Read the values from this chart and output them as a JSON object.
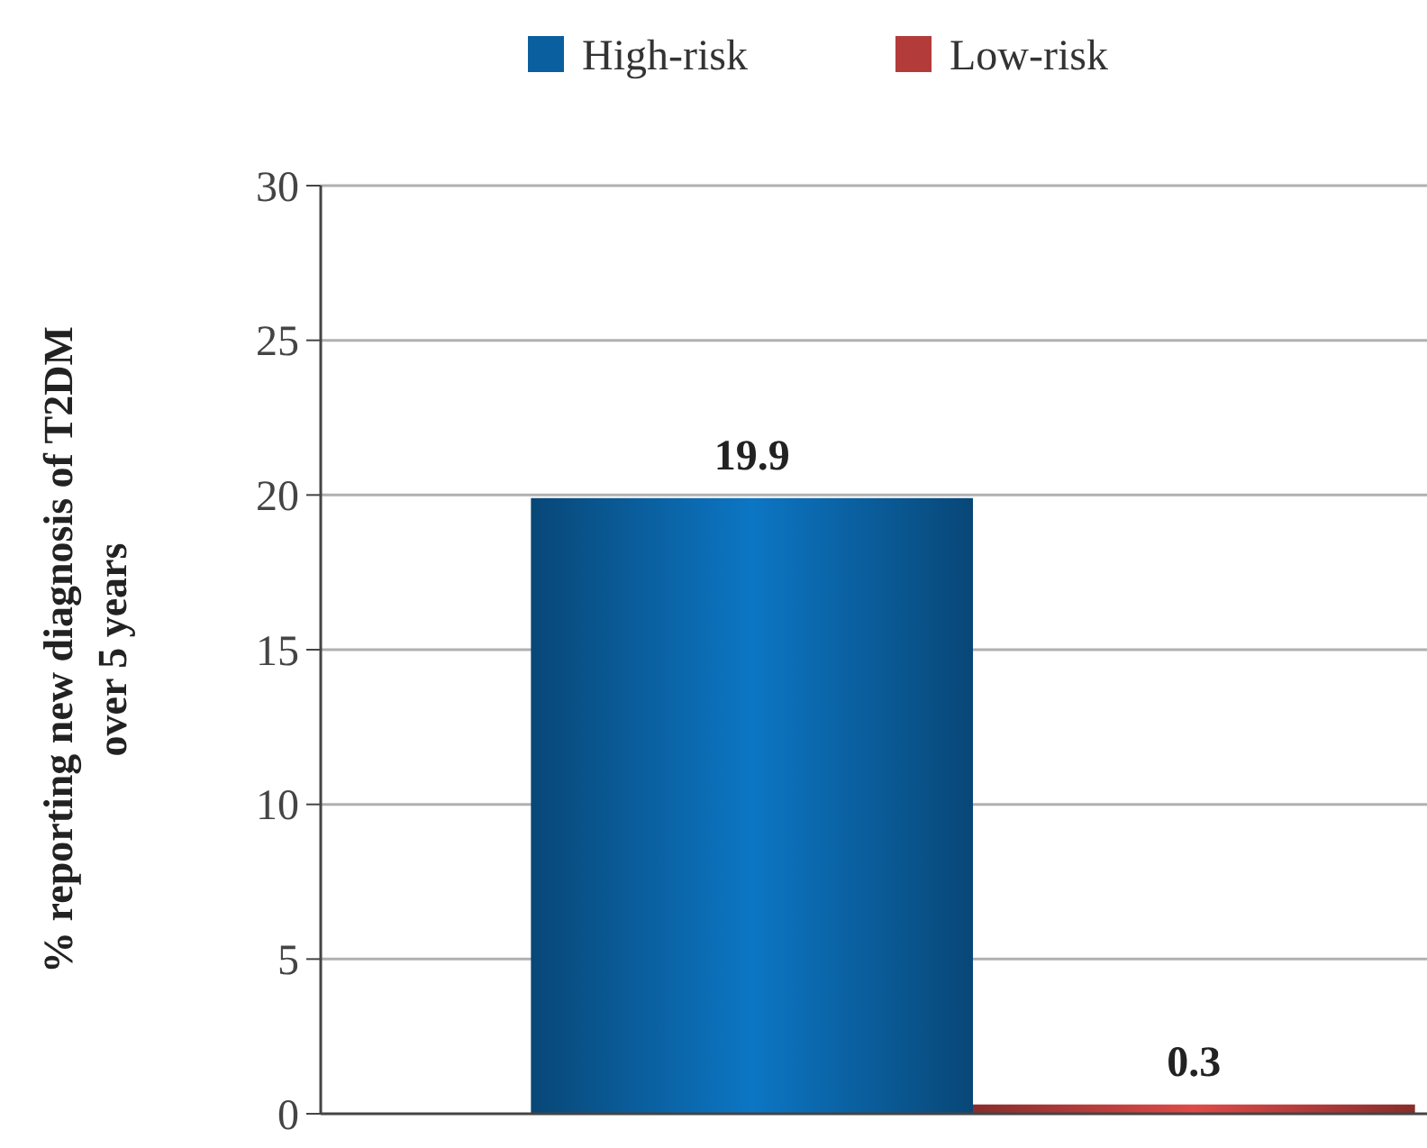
{
  "chart_data": {
    "type": "bar",
    "categories": [
      null
    ],
    "ylabel": "% reporting new diagnosis of  T2DM\nover 5 years",
    "series": [
      {
        "name": "High-risk",
        "color": "#0a5f9e",
        "values": [
          19.9
        ]
      },
      {
        "name": "Low-risk",
        "color": "#b33c3a",
        "values": [
          0.3
        ]
      }
    ],
    "ylim": [
      0,
      30
    ],
    "yticks": [
      0,
      5,
      10,
      15,
      20,
      25,
      30
    ],
    "grid": "y",
    "legend": "top",
    "data_labels": true
  }
}
